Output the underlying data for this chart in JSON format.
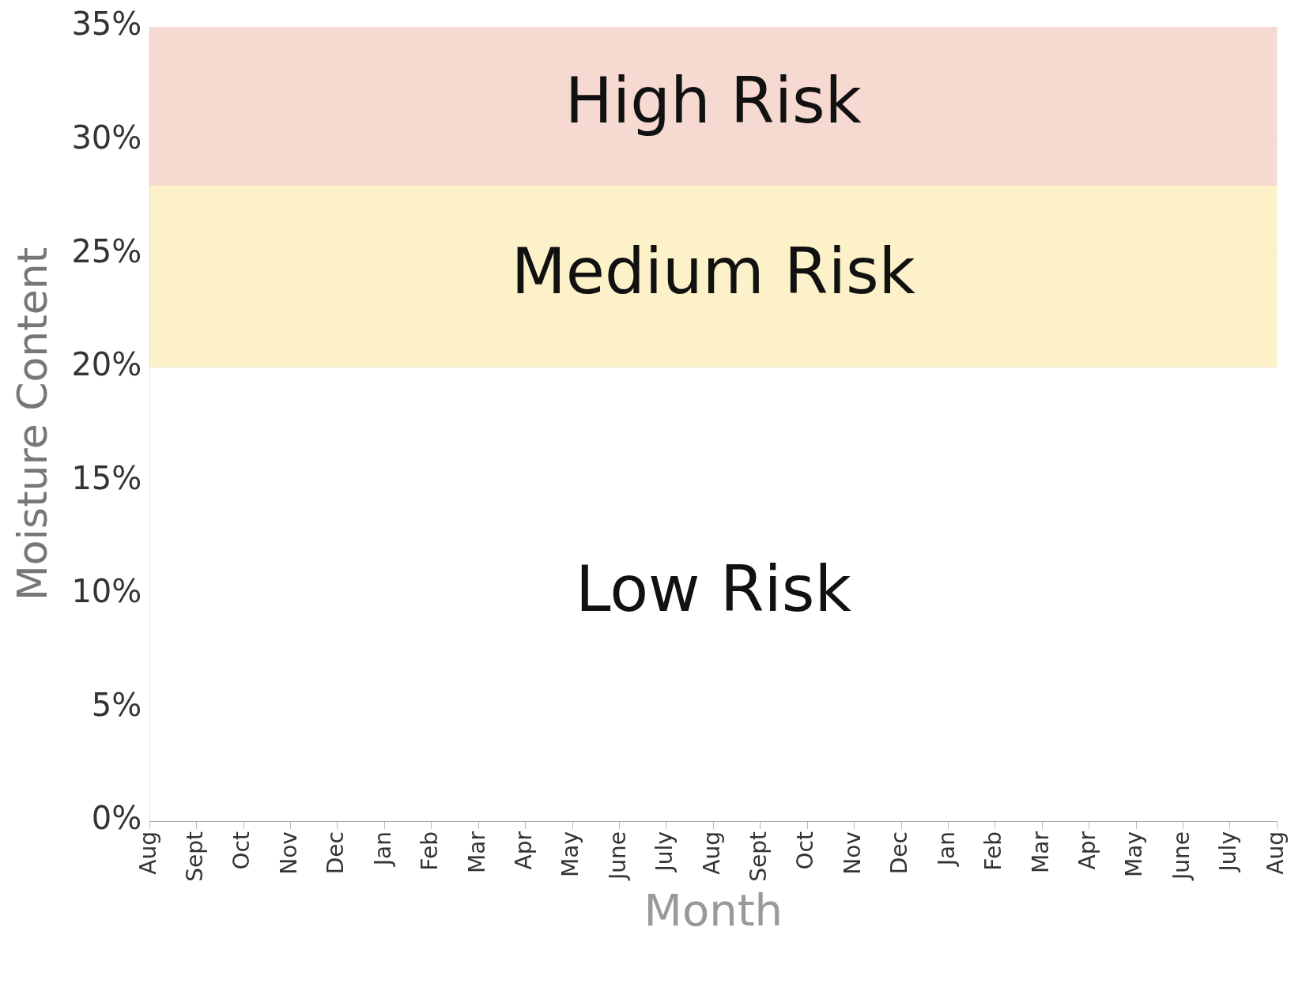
{
  "chart_data": {
    "type": "line",
    "xlabel": "Month",
    "ylabel": "Moisture Content",
    "categories": [
      "Aug",
      "Sept",
      "Oct",
      "Nov",
      "Dec",
      "Jan",
      "Feb",
      "Mar",
      "Apr",
      "May",
      "June",
      "July",
      "Aug",
      "Sept",
      "Oct",
      "Nov",
      "Dec",
      "Jan",
      "Feb",
      "Mar",
      "Apr",
      "May",
      "June",
      "July",
      "Aug"
    ],
    "ylim": [
      0,
      35
    ],
    "yticks": [
      {
        "value": 0,
        "label": "0%"
      },
      {
        "value": 5,
        "label": "5%"
      },
      {
        "value": 10,
        "label": "10%"
      },
      {
        "value": 15,
        "label": "15%"
      },
      {
        "value": 20,
        "label": "20%"
      },
      {
        "value": 25,
        "label": "25%"
      },
      {
        "value": 30,
        "label": "30%"
      },
      {
        "value": 35,
        "label": "35%"
      }
    ],
    "bands": [
      {
        "axis": "y",
        "from": 28,
        "to": 35,
        "label": "High Risk",
        "color": "#f6d9d0"
      },
      {
        "axis": "y",
        "from": 20,
        "to": 28,
        "label": "Medium Risk",
        "color": "#fcf1c8"
      },
      {
        "axis": "y",
        "from": 0,
        "to": 20,
        "label": "Low Risk",
        "color": "#ffffff"
      }
    ],
    "grid": "y"
  }
}
